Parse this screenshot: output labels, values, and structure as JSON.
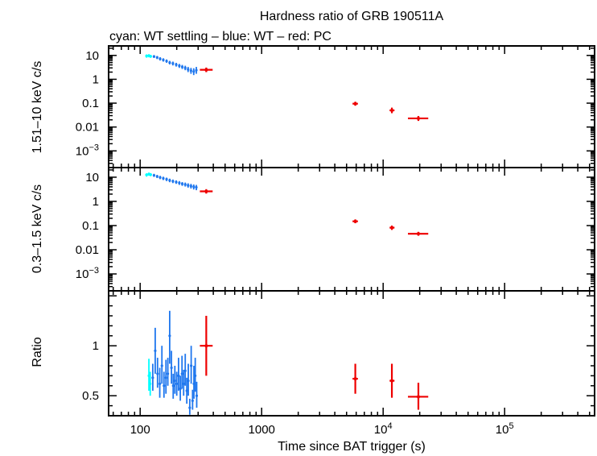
{
  "chart_data": {
    "type": "scatter",
    "title": "Hardness ratio of GRB 190511A",
    "subtitle": "cyan: WT settling – blue: WT – red: PC",
    "xlabel": "Time since BAT trigger (s)",
    "xscale": "log",
    "xlim": [
      55,
      550000
    ],
    "x_ticks": [
      {
        "value": 100,
        "label": "100"
      },
      {
        "value": 1000,
        "label": "1000"
      },
      {
        "value": 10000,
        "label": "10",
        "exp": "4"
      },
      {
        "value": 100000,
        "label": "10",
        "exp": "5"
      }
    ],
    "colors": {
      "wt_settling": "#00ffff",
      "wt": "#1f77ee",
      "pc": "#ee0000"
    },
    "panels": [
      {
        "id": "hard",
        "ylabel": "1.51–10 keV c/s",
        "yscale": "log",
        "ylim": [
          0.0002,
          25
        ],
        "y_ticks": [
          {
            "value": 10,
            "label": "10"
          },
          {
            "value": 1,
            "label": "1"
          },
          {
            "value": 0.1,
            "label": "0.1"
          },
          {
            "value": 0.01,
            "label": "0.01"
          },
          {
            "value": 0.001,
            "label": "10",
            "exp": "−3"
          }
        ],
        "series": [
          {
            "name": "WT settling",
            "color": "cyan",
            "points": [
              {
                "x": 113,
                "y": 9.5,
                "ylo": 8.0,
                "yhi": 11.0,
                "xerr": 3
              },
              {
                "x": 118,
                "y": 9.8,
                "ylo": 8.3,
                "yhi": 11.3,
                "xerr": 3
              },
              {
                "x": 122,
                "y": 9.2,
                "ylo": 7.9,
                "yhi": 10.6,
                "xerr": 3
              }
            ]
          },
          {
            "name": "WT",
            "color": "blue",
            "points": [
              {
                "x": 130,
                "y": 9.0,
                "ylo": 7.8,
                "yhi": 10.3,
                "xerr": 2
              },
              {
                "x": 138,
                "y": 8.2,
                "ylo": 7.0,
                "yhi": 9.5,
                "xerr": 2
              },
              {
                "x": 146,
                "y": 7.2,
                "ylo": 6.1,
                "yhi": 8.4,
                "xerr": 2
              },
              {
                "x": 155,
                "y": 6.5,
                "ylo": 5.5,
                "yhi": 7.6,
                "xerr": 2
              },
              {
                "x": 165,
                "y": 5.8,
                "ylo": 4.9,
                "yhi": 6.8,
                "xerr": 2
              },
              {
                "x": 175,
                "y": 5.0,
                "ylo": 4.2,
                "yhi": 5.9,
                "xerr": 2
              },
              {
                "x": 186,
                "y": 4.6,
                "ylo": 3.8,
                "yhi": 5.5,
                "xerr": 2
              },
              {
                "x": 198,
                "y": 4.1,
                "ylo": 3.4,
                "yhi": 4.9,
                "xerr": 3
              },
              {
                "x": 210,
                "y": 3.7,
                "ylo": 3.0,
                "yhi": 4.4,
                "xerr": 3
              },
              {
                "x": 222,
                "y": 3.3,
                "ylo": 2.7,
                "yhi": 4.0,
                "xerr": 3
              },
              {
                "x": 235,
                "y": 3.0,
                "ylo": 2.4,
                "yhi": 3.7,
                "xerr": 3
              },
              {
                "x": 248,
                "y": 2.6,
                "ylo": 2.0,
                "yhi": 3.3,
                "xerr": 3
              },
              {
                "x": 262,
                "y": 2.3,
                "ylo": 1.7,
                "yhi": 3.0,
                "xerr": 3
              },
              {
                "x": 276,
                "y": 2.1,
                "ylo": 1.5,
                "yhi": 2.9,
                "xerr": 3
              },
              {
                "x": 290,
                "y": 2.4,
                "ylo": 1.7,
                "yhi": 3.3,
                "xerr": 3
              }
            ]
          },
          {
            "name": "PC",
            "color": "red",
            "points": [
              {
                "x": 350,
                "y": 2.5,
                "ylo": 2.0,
                "yhi": 3.1,
                "xlo": 310,
                "xhi": 395
              },
              {
                "x": 5900,
                "y": 0.095,
                "ylo": 0.078,
                "yhi": 0.115,
                "xlo": 5600,
                "xhi": 6200
              },
              {
                "x": 11800,
                "y": 0.05,
                "ylo": 0.038,
                "yhi": 0.065,
                "xlo": 11300,
                "xhi": 12400
              },
              {
                "x": 19500,
                "y": 0.023,
                "ylo": 0.018,
                "yhi": 0.029,
                "xlo": 16000,
                "xhi": 23500
              }
            ]
          }
        ]
      },
      {
        "id": "soft",
        "ylabel": "0.3–1.5 keV c/s",
        "yscale": "log",
        "ylim": [
          0.0002,
          25
        ],
        "y_ticks": [
          {
            "value": 10,
            "label": "10"
          },
          {
            "value": 1,
            "label": "1"
          },
          {
            "value": 0.1,
            "label": "0.1"
          },
          {
            "value": 0.01,
            "label": "0.01"
          },
          {
            "value": 0.001,
            "label": "10",
            "exp": "−3"
          }
        ],
        "series": [
          {
            "name": "WT settling",
            "color": "cyan",
            "points": [
              {
                "x": 113,
                "y": 12.5,
                "ylo": 10.5,
                "yhi": 14.5,
                "xerr": 3
              },
              {
                "x": 118,
                "y": 13.5,
                "ylo": 11.5,
                "yhi": 15.5,
                "xerr": 3
              },
              {
                "x": 122,
                "y": 12.8,
                "ylo": 10.9,
                "yhi": 14.8,
                "xerr": 3
              }
            ]
          },
          {
            "name": "WT",
            "color": "blue",
            "points": [
              {
                "x": 130,
                "y": 12.0,
                "ylo": 10.3,
                "yhi": 13.8,
                "xerr": 2
              },
              {
                "x": 138,
                "y": 10.8,
                "ylo": 9.2,
                "yhi": 12.5,
                "xerr": 2
              },
              {
                "x": 146,
                "y": 9.8,
                "ylo": 8.3,
                "yhi": 11.4,
                "xerr": 2
              },
              {
                "x": 155,
                "y": 9.0,
                "ylo": 7.6,
                "yhi": 10.5,
                "xerr": 2
              },
              {
                "x": 165,
                "y": 8.2,
                "ylo": 6.9,
                "yhi": 9.6,
                "xerr": 2
              },
              {
                "x": 175,
                "y": 7.4,
                "ylo": 6.2,
                "yhi": 8.7,
                "xerr": 2
              },
              {
                "x": 186,
                "y": 6.8,
                "ylo": 5.7,
                "yhi": 8.0,
                "xerr": 2
              },
              {
                "x": 198,
                "y": 6.3,
                "ylo": 5.3,
                "yhi": 7.4,
                "xerr": 3
              },
              {
                "x": 210,
                "y": 5.8,
                "ylo": 4.8,
                "yhi": 6.9,
                "xerr": 3
              },
              {
                "x": 222,
                "y": 5.3,
                "ylo": 4.4,
                "yhi": 6.3,
                "xerr": 3
              },
              {
                "x": 235,
                "y": 5.0,
                "ylo": 4.1,
                "yhi": 6.0,
                "xerr": 3
              },
              {
                "x": 248,
                "y": 4.6,
                "ylo": 3.7,
                "yhi": 5.6,
                "xerr": 3
              },
              {
                "x": 262,
                "y": 4.3,
                "ylo": 3.4,
                "yhi": 5.3,
                "xerr": 3
              },
              {
                "x": 276,
                "y": 4.0,
                "ylo": 3.1,
                "yhi": 5.0,
                "xerr": 3
              },
              {
                "x": 290,
                "y": 3.8,
                "ylo": 2.9,
                "yhi": 4.8,
                "xerr": 3
              }
            ]
          },
          {
            "name": "PC",
            "color": "red",
            "points": [
              {
                "x": 350,
                "y": 2.6,
                "ylo": 2.1,
                "yhi": 3.2,
                "xlo": 310,
                "xhi": 395
              },
              {
                "x": 5900,
                "y": 0.15,
                "ylo": 0.125,
                "yhi": 0.18,
                "xlo": 5600,
                "xhi": 6200
              },
              {
                "x": 11800,
                "y": 0.082,
                "ylo": 0.066,
                "yhi": 0.1,
                "xlo": 11300,
                "xhi": 12400
              },
              {
                "x": 19500,
                "y": 0.046,
                "ylo": 0.038,
                "yhi": 0.055,
                "xlo": 16000,
                "xhi": 23500
              }
            ]
          }
        ]
      },
      {
        "id": "ratio",
        "ylabel": "Ratio",
        "yscale": "linear",
        "ylim": [
          0.3,
          1.55
        ],
        "y_ticks": [
          {
            "value": 1,
            "label": "1"
          },
          {
            "value": 0.5,
            "label": "0.5"
          }
        ],
        "series": [
          {
            "name": "WT settling",
            "color": "cyan",
            "points": [
              {
                "x": 118,
                "y": 0.7,
                "ylo": 0.55,
                "yhi": 0.87,
                "xerr": 2
              },
              {
                "x": 121,
                "y": 0.62,
                "ylo": 0.5,
                "yhi": 0.74,
                "xerr": 2
              }
            ]
          },
          {
            "name": "WT",
            "color": "blue",
            "points": [
              {
                "x": 127,
                "y": 0.68,
                "ylo": 0.55,
                "yhi": 0.82,
                "xerr": 2
              },
              {
                "x": 133,
                "y": 0.95,
                "ylo": 0.72,
                "yhi": 1.18,
                "xerr": 2
              },
              {
                "x": 139,
                "y": 0.72,
                "ylo": 0.58,
                "yhi": 0.88,
                "xerr": 2
              },
              {
                "x": 145,
                "y": 0.62,
                "ylo": 0.48,
                "yhi": 0.78,
                "xerr": 2
              },
              {
                "x": 151,
                "y": 0.8,
                "ylo": 0.62,
                "yhi": 1.0,
                "xerr": 2
              },
              {
                "x": 157,
                "y": 0.6,
                "ylo": 0.48,
                "yhi": 0.74,
                "xerr": 2
              },
              {
                "x": 163,
                "y": 0.68,
                "ylo": 0.52,
                "yhi": 0.86,
                "xerr": 2
              },
              {
                "x": 169,
                "y": 0.72,
                "ylo": 0.6,
                "yhi": 0.88,
                "xerr": 2
              },
              {
                "x": 175,
                "y": 1.1,
                "ylo": 0.82,
                "yhi": 1.35,
                "xerr": 2
              },
              {
                "x": 181,
                "y": 0.78,
                "ylo": 0.62,
                "yhi": 0.95,
                "xerr": 2
              },
              {
                "x": 187,
                "y": 0.6,
                "ylo": 0.47,
                "yhi": 0.72,
                "xerr": 2
              },
              {
                "x": 193,
                "y": 0.65,
                "ylo": 0.52,
                "yhi": 0.8,
                "xerr": 2
              },
              {
                "x": 200,
                "y": 0.62,
                "ylo": 0.5,
                "yhi": 0.74,
                "xerr": 2
              },
              {
                "x": 207,
                "y": 0.7,
                "ylo": 0.55,
                "yhi": 0.88,
                "xerr": 2
              },
              {
                "x": 214,
                "y": 0.57,
                "ylo": 0.45,
                "yhi": 0.7,
                "xerr": 2
              },
              {
                "x": 221,
                "y": 0.72,
                "ylo": 0.57,
                "yhi": 0.9,
                "xerr": 2
              },
              {
                "x": 228,
                "y": 0.62,
                "ylo": 0.5,
                "yhi": 0.76,
                "xerr": 2
              },
              {
                "x": 235,
                "y": 0.75,
                "ylo": 0.6,
                "yhi": 0.92,
                "xerr": 2
              },
              {
                "x": 242,
                "y": 0.55,
                "ylo": 0.42,
                "yhi": 0.68,
                "xerr": 2
              },
              {
                "x": 249,
                "y": 0.65,
                "ylo": 0.5,
                "yhi": 0.82,
                "xerr": 2
              },
              {
                "x": 256,
                "y": 0.38,
                "ylo": 0.31,
                "yhi": 0.47,
                "xerr": 2
              },
              {
                "x": 263,
                "y": 0.8,
                "ylo": 0.62,
                "yhi": 1.0,
                "xerr": 2
              },
              {
                "x": 270,
                "y": 0.45,
                "ylo": 0.36,
                "yhi": 0.56,
                "xerr": 2
              },
              {
                "x": 277,
                "y": 0.62,
                "ylo": 0.47,
                "yhi": 0.8,
                "xerr": 2
              },
              {
                "x": 284,
                "y": 0.7,
                "ylo": 0.54,
                "yhi": 0.88,
                "xerr": 2
              },
              {
                "x": 292,
                "y": 0.5,
                "ylo": 0.38,
                "yhi": 0.64,
                "xerr": 2
              }
            ]
          },
          {
            "name": "PC",
            "color": "red",
            "points": [
              {
                "x": 350,
                "y": 1.0,
                "ylo": 0.7,
                "yhi": 1.3,
                "xlo": 310,
                "xhi": 395
              },
              {
                "x": 5900,
                "y": 0.67,
                "ylo": 0.52,
                "yhi": 0.82,
                "xlo": 5600,
                "xhi": 6200
              },
              {
                "x": 11800,
                "y": 0.65,
                "ylo": 0.48,
                "yhi": 0.82,
                "xlo": 11300,
                "xhi": 12400
              },
              {
                "x": 19500,
                "y": 0.49,
                "ylo": 0.36,
                "yhi": 0.63,
                "xlo": 16000,
                "xhi": 23500
              }
            ]
          }
        ]
      }
    ]
  }
}
